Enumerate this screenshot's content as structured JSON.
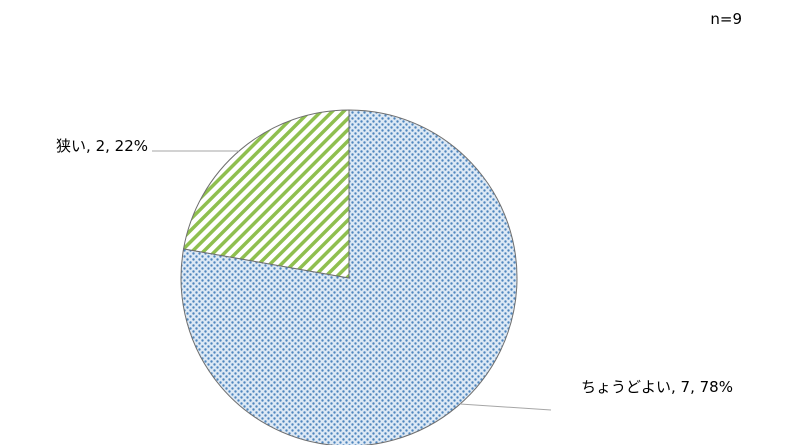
{
  "note": "n=9",
  "chart_data": {
    "type": "pie",
    "slices": [
      {
        "label": "ちょうどよい",
        "value": 7,
        "percent": "78%",
        "data_label": "ちょうどよい, 7, 78%",
        "color": "#5b8fc4",
        "pattern": "dotted-blue"
      },
      {
        "label": "狭い",
        "value": 2,
        "percent": "22%",
        "data_label": "狭い, 2, 22%",
        "color": "#8fbf4f",
        "pattern": "diagonal-green-stripes"
      }
    ],
    "start_angle": "12 o'clock",
    "direction": "clockwise",
    "legend": "none"
  }
}
